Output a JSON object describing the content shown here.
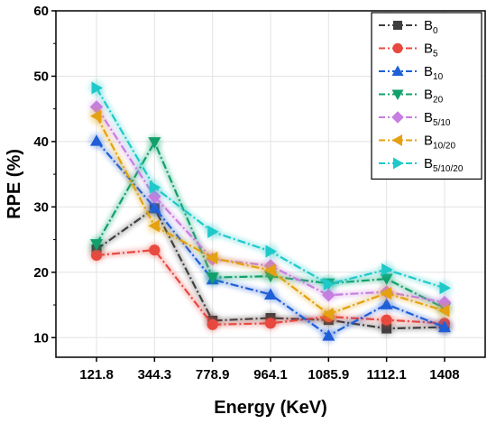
{
  "chart_data": {
    "type": "line",
    "categories": [
      "121.8",
      "344.3",
      "778.9",
      "964.1",
      "1085.9",
      "1112.1",
      "1408"
    ],
    "xlabel": "Energy (KeV)",
    "ylabel": "RPE (%)",
    "ylim": [
      7,
      60
    ],
    "yticks": [
      10,
      20,
      30,
      40,
      50,
      60
    ],
    "grid": true,
    "legend_position": "top-right",
    "series": [
      {
        "name": "B",
        "sub": "0",
        "color": "#3f3f3f",
        "marker": "square",
        "values": [
          23.5,
          29.8,
          12.6,
          13.0,
          12.7,
          11.4,
          11.6
        ]
      },
      {
        "name": "B",
        "sub": "5",
        "color": "#e8493f",
        "marker": "circle",
        "values": [
          22.6,
          23.4,
          12.0,
          12.2,
          13.2,
          12.7,
          12.2
        ]
      },
      {
        "name": "B",
        "sub": "10",
        "color": "#1e5fd8",
        "marker": "triangle-up",
        "values": [
          40.1,
          29.9,
          18.9,
          16.6,
          10.3,
          15.1,
          11.6
        ]
      },
      {
        "name": "B",
        "sub": "20",
        "color": "#12a06a",
        "marker": "triangle-down",
        "values": [
          24.3,
          39.9,
          19.2,
          19.4,
          18.3,
          19.0,
          14.5
        ]
      },
      {
        "name": "B",
        "sub": "5/10",
        "color": "#c77ee0",
        "marker": "diamond",
        "values": [
          45.3,
          31.6,
          22.0,
          21.0,
          16.5,
          17.0,
          15.4
        ]
      },
      {
        "name": "B",
        "sub": "10/20",
        "color": "#e4a112",
        "marker": "triangle-left",
        "values": [
          43.9,
          27.1,
          22.2,
          20.3,
          13.6,
          16.8,
          14.1
        ]
      },
      {
        "name": "B",
        "sub": "5/10/20",
        "color": "#1fc9c9",
        "marker": "triangle-right",
        "values": [
          48.2,
          33.0,
          26.2,
          23.2,
          18.2,
          20.4,
          17.6
        ]
      }
    ]
  }
}
